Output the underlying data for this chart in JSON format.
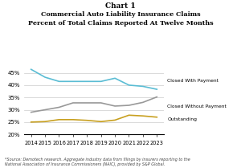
{
  "title_top": "Chart 1",
  "title_main": "Commercial Auto Liability Insurance Claims\nPercent of Total Claims Reported At Twelve Months",
  "footnote": "*Source: Demotech research. Aggregate industry data from filings by insurers reporting to the\nNational Association of Insurance Commissioners (NAIC), provided by S&P Global.",
  "years": [
    2014,
    2015,
    2016,
    2017,
    2018,
    2019,
    2020,
    2021,
    2022,
    2023
  ],
  "closed_with_payment": [
    0.464,
    0.432,
    0.415,
    0.415,
    0.415,
    0.415,
    0.428,
    0.4,
    0.395,
    0.383
  ],
  "closed_without_payment": [
    0.29,
    0.3,
    0.31,
    0.328,
    0.328,
    0.328,
    0.315,
    0.318,
    0.33,
    0.352
  ],
  "outstanding": [
    0.25,
    0.252,
    0.26,
    0.26,
    0.257,
    0.252,
    0.258,
    0.278,
    0.275,
    0.27
  ],
  "color_cwp": "#5bbdd4",
  "color_cwnp": "#999999",
  "color_out": "#c8a020",
  "ylim": [
    0.2,
    0.5
  ],
  "yticks": [
    0.2,
    0.25,
    0.3,
    0.35,
    0.4,
    0.45
  ],
  "ytick_labels": [
    "20%",
    "25%",
    "30%",
    "35%",
    "40%",
    "45%"
  ],
  "label_cwp": "Closed With Payment",
  "label_cwnp": "Closed Without Payment",
  "label_out": "Outstanding"
}
